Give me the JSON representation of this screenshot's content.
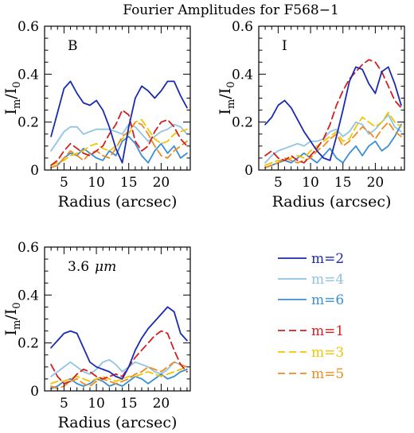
{
  "suptitle": "Fourier Amplitudes for F568−1",
  "legend": {
    "items": [
      {
        "label": "m=2",
        "color": "#1a2bb0",
        "dash": "solid"
      },
      {
        "label": "m=4",
        "color": "#8ec3e3",
        "dash": "solid"
      },
      {
        "label": "m=6",
        "color": "#3b8fd6",
        "dash": "solid"
      },
      {
        "label": "m=1",
        "color": "#d41f1f",
        "dash": "dashed"
      },
      {
        "label": "m=3",
        "color": "#f2c400",
        "dash": "dashed"
      },
      {
        "label": "m=5",
        "color": "#f08c1e",
        "dash": "dashed"
      }
    ]
  },
  "chart_data": [
    {
      "type": "line",
      "title": "",
      "panel_label": "B",
      "xlabel": "Radius (arcsec)",
      "ylabel": "I_m/I_0",
      "ylabel_parts": {
        "main": "I",
        "sub1": "m",
        "slash": "/I",
        "sub2": "0"
      },
      "xlim": [
        2,
        24.5
      ],
      "ylim": [
        0,
        0.6
      ],
      "xticks": [
        5,
        10,
        15,
        20
      ],
      "yticks": [
        0,
        0.2,
        0.4,
        0.6
      ],
      "xtick_labels": [
        "5",
        "10",
        "15",
        "20"
      ],
      "ytick_labels": [
        "0",
        "0.2",
        "0.4",
        "0.6"
      ],
      "series": [
        {
          "name": "m=4",
          "x": [
            3,
            4,
            5,
            6,
            7,
            8,
            9,
            10,
            11,
            12,
            13,
            14,
            15,
            16,
            17,
            18,
            19,
            20,
            21,
            22,
            23,
            24
          ],
          "values": [
            0.08,
            0.12,
            0.16,
            0.18,
            0.18,
            0.15,
            0.16,
            0.17,
            0.17,
            0.17,
            0.16,
            0.15,
            0.19,
            0.18,
            0.15,
            0.12,
            0.14,
            0.16,
            0.17,
            0.19,
            0.18,
            0.15
          ]
        },
        {
          "name": "m=6",
          "x": [
            3,
            4,
            5,
            6,
            7,
            8,
            9,
            10,
            11,
            12,
            13,
            14,
            15,
            16,
            17,
            18,
            19,
            20,
            21,
            22,
            23,
            24
          ],
          "values": [
            0.01,
            0.02,
            0.05,
            0.07,
            0.06,
            0.09,
            0.07,
            0.05,
            0.04,
            0.08,
            0.06,
            0.12,
            0.14,
            0.11,
            0.06,
            0.03,
            0.08,
            0.11,
            0.07,
            0.1,
            0.05,
            0.07
          ]
        },
        {
          "name": "m=3",
          "x": [
            3,
            4,
            5,
            6,
            7,
            8,
            9,
            10,
            11,
            12,
            13,
            14,
            15,
            16,
            17,
            18,
            19,
            20,
            21,
            22,
            23,
            24
          ],
          "values": [
            0.02,
            0.03,
            0.04,
            0.06,
            0.07,
            0.08,
            0.1,
            0.11,
            0.09,
            0.08,
            0.1,
            0.13,
            0.15,
            0.2,
            0.21,
            0.17,
            0.13,
            0.11,
            0.12,
            0.15,
            0.16,
            0.17
          ]
        },
        {
          "name": "m=5",
          "x": [
            3,
            4,
            5,
            6,
            7,
            8,
            9,
            10,
            11,
            12,
            13,
            14,
            15,
            16,
            17,
            18,
            19,
            20,
            21,
            22,
            23,
            24
          ],
          "values": [
            0.01,
            0.02,
            0.05,
            0.08,
            0.06,
            0.04,
            0.07,
            0.08,
            0.06,
            0.05,
            0.09,
            0.14,
            0.16,
            0.2,
            0.19,
            0.15,
            0.1,
            0.06,
            0.05,
            0.08,
            0.1,
            0.12
          ]
        },
        {
          "name": "m=1",
          "x": [
            3,
            4,
            5,
            6,
            7,
            8,
            9,
            10,
            11,
            12,
            13,
            14,
            15,
            16,
            17,
            18,
            19,
            20,
            21,
            22,
            23,
            24
          ],
          "values": [
            0.02,
            0.04,
            0.08,
            0.11,
            0.09,
            0.07,
            0.06,
            0.08,
            0.1,
            0.15,
            0.19,
            0.25,
            0.23,
            0.12,
            0.08,
            0.1,
            0.16,
            0.2,
            0.21,
            0.18,
            0.13,
            0.1
          ]
        },
        {
          "name": "m=2",
          "x": [
            3,
            4,
            5,
            6,
            7,
            8,
            9,
            10,
            11,
            12,
            13,
            14,
            15,
            16,
            17,
            18,
            19,
            20,
            21,
            22,
            23,
            24
          ],
          "values": [
            0.14,
            0.24,
            0.34,
            0.37,
            0.32,
            0.28,
            0.27,
            0.29,
            0.25,
            0.18,
            0.09,
            0.03,
            0.18,
            0.3,
            0.35,
            0.33,
            0.3,
            0.33,
            0.37,
            0.37,
            0.31,
            0.26
          ]
        }
      ]
    },
    {
      "type": "line",
      "title": "",
      "panel_label": "I",
      "xlabel": "Radius (arcsec)",
      "ylabel": "I_m/I_0",
      "ylabel_parts": {
        "main": "I",
        "sub1": "m",
        "slash": "/I",
        "sub2": "0"
      },
      "xlim": [
        2,
        24.5
      ],
      "ylim": [
        0,
        0.6
      ],
      "xticks": [
        5,
        10,
        15,
        20
      ],
      "yticks": [
        0,
        0.2,
        0.4,
        0.6
      ],
      "xtick_labels": [
        "5",
        "10",
        "15",
        "20"
      ],
      "ytick_labels": [
        "0",
        "0.2",
        "0.4",
        "0.6"
      ],
      "series": [
        {
          "name": "m=4",
          "x": [
            3,
            4,
            5,
            6,
            7,
            8,
            9,
            10,
            11,
            12,
            13,
            14,
            15,
            16,
            17,
            18,
            19,
            20,
            21,
            22,
            23,
            24
          ],
          "values": [
            0.03,
            0.06,
            0.08,
            0.09,
            0.1,
            0.11,
            0.1,
            0.12,
            0.12,
            0.13,
            0.16,
            0.17,
            0.14,
            0.16,
            0.2,
            0.19,
            0.15,
            0.17,
            0.2,
            0.23,
            0.18,
            0.16
          ]
        },
        {
          "name": "m=6",
          "x": [
            3,
            4,
            5,
            6,
            7,
            8,
            9,
            10,
            11,
            12,
            13,
            14,
            15,
            16,
            17,
            18,
            19,
            20,
            21,
            22,
            23,
            24
          ],
          "values": [
            0.01,
            0.02,
            0.03,
            0.04,
            0.03,
            0.05,
            0.07,
            0.05,
            0.03,
            0.06,
            0.09,
            0.05,
            0.03,
            0.07,
            0.1,
            0.06,
            0.1,
            0.12,
            0.08,
            0.1,
            0.14,
            0.19
          ]
        },
        {
          "name": "m=3",
          "x": [
            3,
            4,
            5,
            6,
            7,
            8,
            9,
            10,
            11,
            12,
            13,
            14,
            15,
            16,
            17,
            18,
            19,
            20,
            21,
            22,
            23,
            24
          ],
          "values": [
            0.02,
            0.03,
            0.04,
            0.04,
            0.05,
            0.06,
            0.05,
            0.08,
            0.1,
            0.12,
            0.14,
            0.16,
            0.12,
            0.13,
            0.18,
            0.22,
            0.2,
            0.18,
            0.2,
            0.24,
            0.2,
            0.18
          ]
        },
        {
          "name": "m=5",
          "x": [
            3,
            4,
            5,
            6,
            7,
            8,
            9,
            10,
            11,
            12,
            13,
            14,
            15,
            16,
            17,
            18,
            19,
            20,
            21,
            22,
            23,
            24
          ],
          "values": [
            0.01,
            0.02,
            0.03,
            0.05,
            0.04,
            0.03,
            0.04,
            0.05,
            0.08,
            0.1,
            0.13,
            0.15,
            0.1,
            0.12,
            0.15,
            0.18,
            0.16,
            0.13,
            0.17,
            0.2,
            0.16,
            0.14
          ]
        },
        {
          "name": "m=1",
          "x": [
            3,
            4,
            5,
            6,
            7,
            8,
            9,
            10,
            11,
            12,
            13,
            14,
            15,
            16,
            17,
            18,
            19,
            20,
            21,
            22,
            23,
            24
          ],
          "values": [
            0.06,
            0.08,
            0.05,
            0.04,
            0.06,
            0.04,
            0.03,
            0.06,
            0.09,
            0.13,
            0.19,
            0.27,
            0.33,
            0.38,
            0.41,
            0.44,
            0.46,
            0.45,
            0.41,
            0.35,
            0.29,
            0.26
          ]
        },
        {
          "name": "m=2",
          "x": [
            3,
            4,
            5,
            6,
            7,
            8,
            9,
            10,
            11,
            12,
            13,
            14,
            15,
            16,
            17,
            18,
            19,
            20,
            21,
            22,
            23,
            24
          ],
          "values": [
            0.19,
            0.22,
            0.27,
            0.29,
            0.26,
            0.21,
            0.16,
            0.12,
            0.08,
            0.05,
            0.04,
            0.14,
            0.25,
            0.37,
            0.43,
            0.42,
            0.36,
            0.32,
            0.41,
            0.43,
            0.36,
            0.27
          ]
        }
      ]
    },
    {
      "type": "line",
      "title": "",
      "panel_label": "3.6",
      "panel_label_unit": "μm",
      "xlabel": "Radius (arcsec)",
      "ylabel": "I_m/I_0",
      "ylabel_parts": {
        "main": "I",
        "sub1": "m",
        "slash": "/I",
        "sub2": "0"
      },
      "xlim": [
        2,
        24.5
      ],
      "ylim": [
        0,
        0.6
      ],
      "xticks": [
        5,
        10,
        15,
        20
      ],
      "yticks": [
        0,
        0.2,
        0.4,
        0.6
      ],
      "xtick_labels": [
        "5",
        "10",
        "15",
        "20"
      ],
      "ytick_labels": [
        "0",
        "0.2",
        "0.4",
        "0.6"
      ],
      "series": [
        {
          "name": "m=4",
          "x": [
            3,
            4,
            5,
            6,
            7,
            8,
            9,
            10,
            11,
            12,
            13,
            14,
            15,
            16,
            17,
            18,
            19,
            20,
            21,
            22,
            23,
            24
          ],
          "values": [
            0.06,
            0.08,
            0.1,
            0.12,
            0.1,
            0.08,
            0.07,
            0.09,
            0.12,
            0.13,
            0.11,
            0.08,
            0.1,
            0.12,
            0.11,
            0.1,
            0.08,
            0.07,
            0.09,
            0.12,
            0.11,
            0.1
          ]
        },
        {
          "name": "m=6",
          "x": [
            3,
            4,
            5,
            6,
            7,
            8,
            9,
            10,
            11,
            12,
            13,
            14,
            15,
            16,
            17,
            18,
            19,
            20,
            21,
            22,
            23,
            24
          ],
          "values": [
            0.01,
            0.02,
            0.04,
            0.05,
            0.03,
            0.02,
            0.03,
            0.05,
            0.04,
            0.02,
            0.03,
            0.02,
            0.04,
            0.06,
            0.05,
            0.03,
            0.05,
            0.07,
            0.05,
            0.06,
            0.08,
            0.09
          ]
        },
        {
          "name": "m=3",
          "x": [
            3,
            4,
            5,
            6,
            7,
            8,
            9,
            10,
            11,
            12,
            13,
            14,
            15,
            16,
            17,
            18,
            19,
            20,
            21,
            22,
            23,
            24
          ],
          "values": [
            0.03,
            0.04,
            0.04,
            0.05,
            0.06,
            0.05,
            0.04,
            0.05,
            0.06,
            0.05,
            0.04,
            0.05,
            0.06,
            0.06,
            0.07,
            0.08,
            0.07,
            0.06,
            0.07,
            0.08,
            0.09,
            0.1
          ]
        },
        {
          "name": "m=5",
          "x": [
            3,
            4,
            5,
            6,
            7,
            8,
            9,
            10,
            11,
            12,
            13,
            14,
            15,
            16,
            17,
            18,
            19,
            20,
            21,
            22,
            23,
            24
          ],
          "values": [
            0.02,
            0.01,
            0.02,
            0.04,
            0.05,
            0.03,
            0.02,
            0.04,
            0.05,
            0.04,
            0.03,
            0.04,
            0.05,
            0.07,
            0.08,
            0.1,
            0.09,
            0.08,
            0.1,
            0.12,
            0.11,
            0.1
          ]
        },
        {
          "name": "m=1",
          "x": [
            3,
            4,
            5,
            6,
            7,
            8,
            9,
            10,
            11,
            12,
            13,
            14,
            15,
            16,
            17,
            18,
            19,
            20,
            21,
            22,
            23,
            24
          ],
          "values": [
            0.11,
            0.06,
            0.03,
            0.04,
            0.07,
            0.09,
            0.08,
            0.06,
            0.05,
            0.06,
            0.07,
            0.06,
            0.1,
            0.14,
            0.17,
            0.2,
            0.23,
            0.25,
            0.24,
            0.17,
            0.11,
            0.08
          ]
        },
        {
          "name": "m=2",
          "x": [
            3,
            4,
            5,
            6,
            7,
            8,
            9,
            10,
            11,
            12,
            13,
            14,
            15,
            16,
            17,
            18,
            19,
            20,
            21,
            22,
            23,
            24
          ],
          "values": [
            0.18,
            0.21,
            0.24,
            0.25,
            0.24,
            0.18,
            0.12,
            0.1,
            0.09,
            0.08,
            0.06,
            0.05,
            0.1,
            0.17,
            0.22,
            0.26,
            0.29,
            0.32,
            0.35,
            0.33,
            0.24,
            0.21
          ]
        }
      ]
    }
  ]
}
